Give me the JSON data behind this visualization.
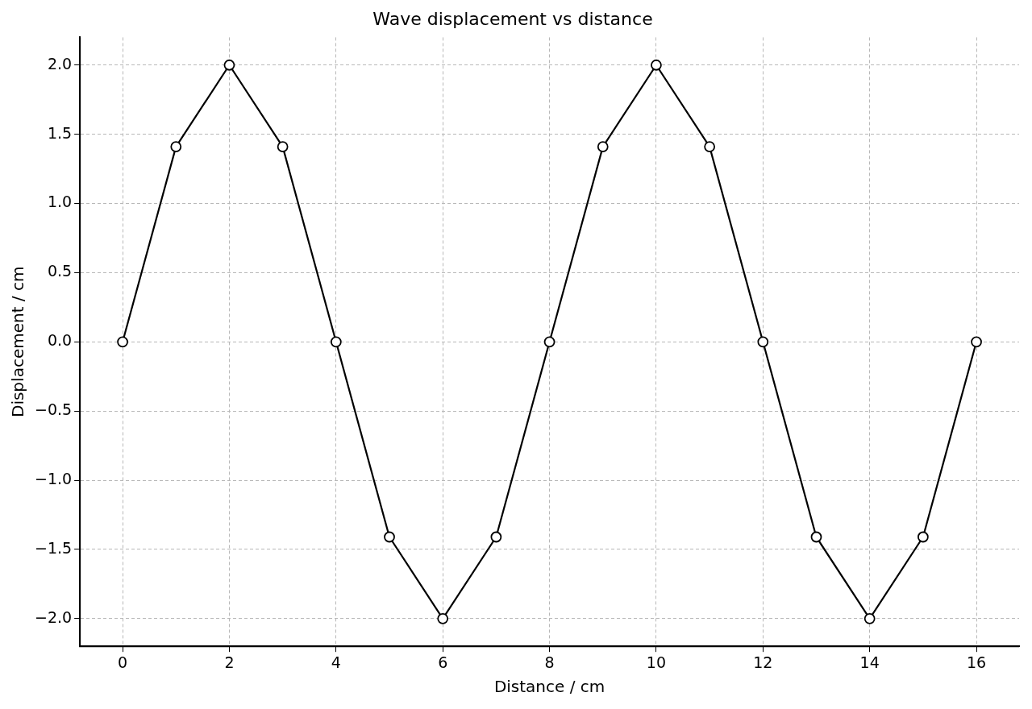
{
  "chart_data": {
    "type": "line",
    "title": "Wave displacement vs distance",
    "xlabel": "Distance / cm",
    "ylabel": "Displacement / cm",
    "x": [
      0,
      1,
      2,
      3,
      4,
      5,
      6,
      7,
      8,
      9,
      10,
      11,
      12,
      13,
      14,
      15,
      16
    ],
    "series": [
      {
        "color": "#000000",
        "values": [
          0,
          1.41,
          2,
          1.41,
          0,
          -1.41,
          -2,
          -1.41,
          0,
          1.41,
          2,
          1.41,
          0,
          -1.41,
          -2,
          -1.41,
          0
        ]
      }
    ],
    "xlim": [
      -0.8,
      16.8
    ],
    "ylim": [
      -2.2,
      2.2
    ],
    "xticks": [
      0,
      2,
      4,
      6,
      8,
      10,
      12,
      14,
      16
    ],
    "yticks": [
      {
        "value": -2,
        "label": "−2.0"
      },
      {
        "value": -1.5,
        "label": "−1.5"
      },
      {
        "value": -1,
        "label": "−1.0"
      },
      {
        "value": -0.5,
        "label": "−0.5"
      },
      {
        "value": 0,
        "label": "0.0"
      },
      {
        "value": 0.5,
        "label": "0.5"
      },
      {
        "value": 1,
        "label": "1.0"
      },
      {
        "value": 1.5,
        "label": "1.5"
      },
      {
        "value": 2,
        "label": "2.0"
      }
    ],
    "grid": true,
    "legend": false,
    "marker": "circle",
    "line_style": "solid"
  }
}
